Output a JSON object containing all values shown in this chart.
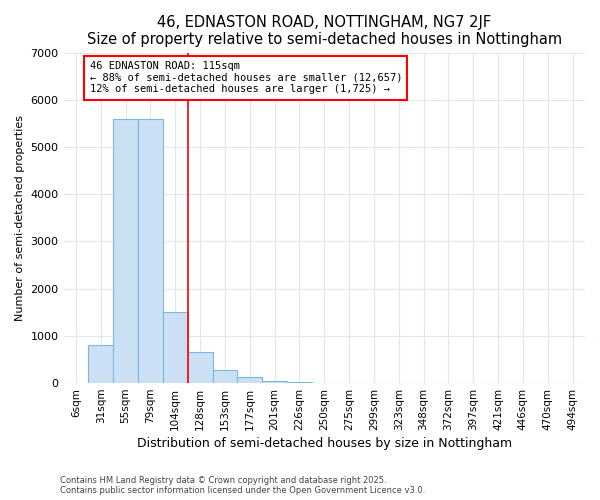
{
  "title": "46, EDNASTON ROAD, NOTTINGHAM, NG7 2JF",
  "subtitle": "Size of property relative to semi-detached houses in Nottingham",
  "xlabel": "Distribution of semi-detached houses by size in Nottingham",
  "ylabel": "Number of semi-detached properties",
  "categories": [
    "6sqm",
    "31sqm",
    "55sqm",
    "79sqm",
    "104sqm",
    "128sqm",
    "153sqm",
    "177sqm",
    "201sqm",
    "226sqm",
    "250sqm",
    "275sqm",
    "299sqm",
    "323sqm",
    "348sqm",
    "372sqm",
    "397sqm",
    "421sqm",
    "446sqm",
    "470sqm",
    "494sqm"
  ],
  "values": [
    10,
    800,
    5600,
    5600,
    1500,
    650,
    280,
    130,
    50,
    30,
    10,
    3,
    0,
    0,
    0,
    0,
    0,
    0,
    0,
    0,
    0
  ],
  "bar_color": "#cce0f5",
  "bar_edgecolor": "#7ab8e0",
  "red_line_x": 4.5,
  "annotation_line1": "46 EDNASTON ROAD: 115sqm",
  "annotation_line2": "← 88% of semi-detached houses are smaller (12,657)",
  "annotation_line3": "12% of semi-detached houses are larger (1,725) →",
  "ylim": [
    0,
    7000
  ],
  "yticks": [
    0,
    1000,
    2000,
    3000,
    4000,
    5000,
    6000,
    7000
  ],
  "footer1": "Contains HM Land Registry data © Crown copyright and database right 2025.",
  "footer2": "Contains public sector information licensed under the Open Government Licence v3.0.",
  "bg_color": "#ffffff",
  "plot_bg_color": "#ffffff",
  "grid_color": "#dde8f0"
}
